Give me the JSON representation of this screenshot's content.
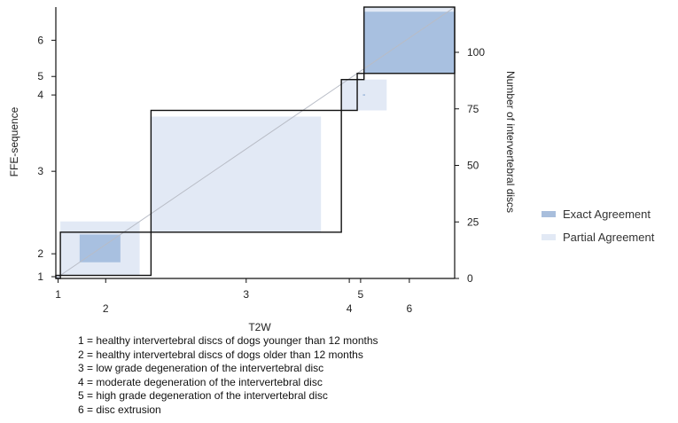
{
  "chart_data": {
    "type": "agreement-chart",
    "xlabel": "T2W",
    "ylabel": "FFE-sequence",
    "y2label": "Number of intervertebral discs",
    "categories": [
      "1",
      "2",
      "3",
      "4",
      "5",
      "6"
    ],
    "marginal_totals": {
      "T2W": [
        2,
        40,
        84,
        7,
        3,
        40
      ],
      "FFE": [
        2,
        28,
        79,
        20,
        4,
        43
      ]
    },
    "cumulative_counts": {
      "T2W": [
        0,
        2,
        42,
        126,
        133,
        136,
        176
      ],
      "FFE": [
        0,
        2,
        30,
        109,
        129,
        133,
        176
      ]
    },
    "exact_agreement": [
      1,
      18,
      8,
      1,
      0,
      40
    ],
    "partial_agreement": [
      2,
      35,
      75,
      20,
      1,
      43
    ],
    "y2_ticks": [
      0,
      25,
      50,
      75,
      100
    ],
    "y2lim": [
      0,
      120
    ],
    "legend": [
      {
        "label": "Exact Agreement",
        "color": "#a8bedc"
      },
      {
        "label": "Partial Agreement",
        "color": "#e2e9f5"
      }
    ],
    "colors": {
      "exact": "#a8c0e0",
      "partial": "#e2e9f5",
      "outline": "#111111",
      "diagonal": "#b8bcc6"
    },
    "legend_position": "right",
    "grid": false
  },
  "key": [
    "1 = healthy intervertebral discs of dogs younger than 12 months",
    "2 = healthy intervertebral discs of dogs older than 12 months",
    "3 = low grade degeneration of the intervertebral disc",
    "4 = moderate degeneration of the intervertebral disc",
    "5 = high grade degeneration of the intervertebral disc",
    "6 = disc extrusion"
  ]
}
